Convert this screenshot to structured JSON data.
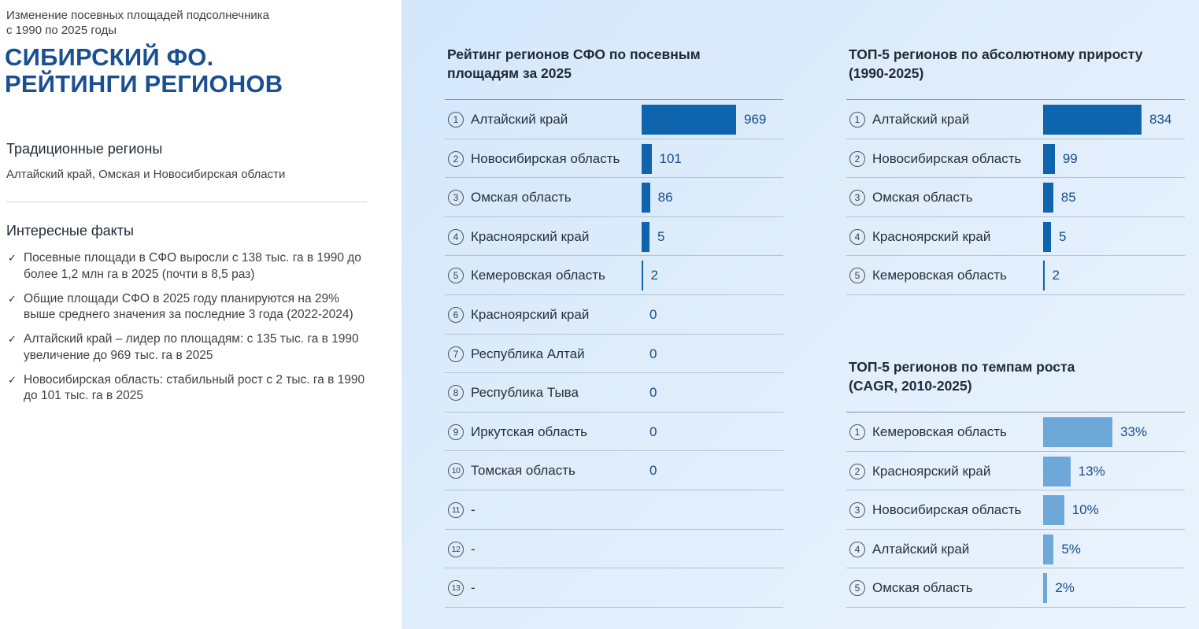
{
  "header": {
    "subtitle_line1": "Изменение посевных площадей подсолнечника",
    "subtitle_line2": "с 1990 по 2025 годы",
    "title_line1": "СИБИРСКИЙ ФО.",
    "title_line2": "РЕЙТИНГИ РЕГИОНОВ"
  },
  "traditional": {
    "heading": "Традиционные регионы",
    "text": "Алтайский край, Омская и Новосибирская области"
  },
  "facts": {
    "heading": "Интересные факты",
    "items": [
      "Посевные площади в СФО выросли с 138 тыс. га в 1990 до более 1,2 млн га в 2025 (почти в 8,5 раз)",
      "Общие площади СФО в 2025 году планируются на 29% выше среднего значения за последние 3 года (2022-2024)",
      "Алтайский край – лидер по площадям: с 135 тыс. га в 1990 увеличение до 969 тыс. га в 2025",
      "Новосибирская область: стабильный рост с 2 тыс. га в 1990 до 101 тыс. га в 2025"
    ]
  },
  "colors": {
    "dark_bar": "#0e64ad",
    "light_bar": "#6ea8d8",
    "value_text": "#164d8b"
  },
  "chart_data": [
    {
      "type": "bar",
      "orientation": "horizontal",
      "title_line1": "Рейтинг регионов СФО по посевным",
      "title_line2": "площадям за 2025",
      "ranks": [
        "1",
        "2",
        "3",
        "4",
        "5",
        "6",
        "7",
        "8",
        "9",
        "10",
        "11",
        "12",
        "13"
      ],
      "categories": [
        "Алтайский край",
        "Новосибирская область",
        "Омская область",
        "Красноярский край",
        "Кемеровская область",
        "Красноярский край",
        "Республика Алтай",
        "Республика Тыва",
        "Иркутская область",
        "Томская область",
        "-",
        "-",
        "-"
      ],
      "values": [
        969,
        101,
        86,
        5,
        2,
        0,
        0,
        0,
        0,
        0,
        null,
        null,
        null
      ],
      "value_labels": [
        "969",
        "101",
        "86",
        "5",
        "2",
        "0",
        "0",
        "0",
        "0",
        "0",
        "",
        "",
        ""
      ],
      "bar_color": "#0e64ad"
    },
    {
      "type": "bar",
      "orientation": "horizontal",
      "title_line1": "ТОП-5 регионов по абсолютному приросту",
      "title_line2": "(1990-2025)",
      "ranks": [
        "1",
        "2",
        "3",
        "4",
        "5"
      ],
      "categories": [
        "Алтайский край",
        "Новосибирская область",
        "Омская область",
        "Красноярский край",
        "Кемеровская область"
      ],
      "values": [
        834,
        99,
        85,
        5,
        2
      ],
      "value_labels": [
        "834",
        "99",
        "85",
        "5",
        "2"
      ],
      "bar_color": "#0e64ad"
    },
    {
      "type": "bar",
      "orientation": "horizontal",
      "title_line1": "ТОП-5 регионов по темпам роста",
      "title_line2": "(CAGR, 2010-2025)",
      "ranks": [
        "1",
        "2",
        "3",
        "4",
        "5"
      ],
      "categories": [
        "Кемеровская область",
        "Красноярский край",
        "Новосибирская область",
        "Алтайский край",
        "Омская область"
      ],
      "values": [
        33,
        13,
        10,
        5,
        2
      ],
      "value_labels": [
        "33%",
        "13%",
        "10%",
        "5%",
        "2%"
      ],
      "bar_color": "#6ea8d8"
    }
  ]
}
